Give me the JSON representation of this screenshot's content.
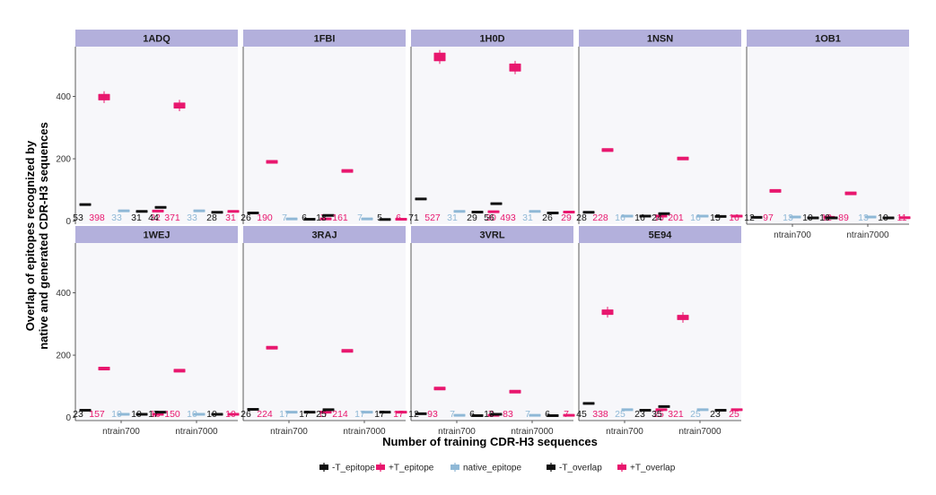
{
  "chart_data": {
    "type": "boxplot",
    "facet_layout": {
      "columns": 5,
      "rows": 2
    },
    "xlabel": "Number of training CDR-H3 sequences",
    "ylabel_lines": [
      "Overlap of epitopes recognized by",
      "native and generated CDR-H3 sequences"
    ],
    "ylim": [
      -10,
      560
    ],
    "yticks": [
      0,
      200,
      400
    ],
    "categories": [
      "ntrain700",
      "ntrain7000"
    ],
    "series_names": [
      "-T_epitope",
      "+T_epitope",
      "native_epitope",
      "-T_overlap",
      "+T_overlap"
    ],
    "series_colors": [
      "#111111",
      "#e8176e",
      "#8fb8d6",
      "#111111",
      "#e8176e"
    ],
    "legend": {
      "position": "bottom",
      "entries": [
        {
          "label": "-T_epitope",
          "color": "#111111"
        },
        {
          "label": "+T_epitope",
          "color": "#e8176e"
        },
        {
          "label": "native_epitope",
          "color": "#8fb8d6"
        },
        {
          "label": "-T_overlap",
          "color": "#111111"
        },
        {
          "label": "+T_overlap",
          "color": "#e8176e"
        }
      ]
    },
    "style": {
      "strip_fill": "#b3b0dc",
      "panel_fill": "#f7f7fa",
      "grid": false
    },
    "panels": [
      {
        "title": "1ADQ",
        "groups": [
          {
            "values": [
              53,
              398,
              33,
              31,
              32
            ],
            "labels": [
              "53",
              "398",
              "33",
              "31",
              "32"
            ]
          },
          {
            "values": [
              44,
              371,
              33,
              28,
              31
            ],
            "labels": [
              "44",
              "371",
              "33",
              "28",
              "31"
            ]
          }
        ]
      },
      {
        "title": "1FBI",
        "groups": [
          {
            "values": [
              26,
              190,
              7,
              6,
              7
            ],
            "labels": [
              "26",
              "190",
              "7",
              "6",
              "7"
            ]
          },
          {
            "values": [
              18,
              161,
              7,
              5,
              6
            ],
            "labels": [
              "18",
              "161",
              "7",
              "5",
              "6"
            ]
          }
        ]
      },
      {
        "title": "1H0D",
        "groups": [
          {
            "values": [
              71,
              527,
              31,
              29,
              30
            ],
            "labels": [
              "71",
              "527",
              "31",
              "29",
              "30"
            ]
          },
          {
            "values": [
              56,
              493,
              31,
              26,
              29
            ],
            "labels": [
              "56",
              "493",
              "31",
              "26",
              "29"
            ]
          }
        ]
      },
      {
        "title": "1NSN",
        "groups": [
          {
            "values": [
              28,
              228,
              16,
              16,
              16
            ],
            "labels": [
              "28",
              "228",
              "16",
              "16",
              "16"
            ]
          },
          {
            "values": [
              24,
              201,
              16,
              15,
              16
            ],
            "labels": [
              "24",
              "201",
              "16",
              "15",
              "16"
            ]
          }
        ]
      },
      {
        "title": "1OB1",
        "groups": [
          {
            "values": [
              12,
              97,
              13,
              10,
              12
            ],
            "labels": [
              "12",
              "97",
              "13",
              "10",
              "12"
            ]
          },
          {
            "values": [
              10,
              89,
              13,
              10,
              11
            ],
            "labels": [
              "10",
              "89",
              "13",
              "10",
              "11"
            ]
          }
        ]
      },
      {
        "title": "1WEJ",
        "groups": [
          {
            "values": [
              23,
              157,
              10,
              10,
              10
            ],
            "labels": [
              "23",
              "157",
              "10",
              "10",
              "10"
            ]
          },
          {
            "values": [
              17,
              150,
              10,
              10,
              10
            ],
            "labels": [
              "17",
              "150",
              "10",
              "10",
              "10"
            ]
          }
        ]
      },
      {
        "title": "3RAJ",
        "groups": [
          {
            "values": [
              26,
              224,
              17,
              17,
              17
            ],
            "labels": [
              "26",
              "224",
              "17",
              "17",
              "17"
            ]
          },
          {
            "values": [
              25,
              214,
              17,
              17,
              17
            ],
            "labels": [
              "25",
              "214",
              "17",
              "17",
              "17"
            ]
          }
        ]
      },
      {
        "title": "3VRL",
        "groups": [
          {
            "values": [
              12,
              93,
              7,
              6,
              7
            ],
            "labels": [
              "12",
              "93",
              "7",
              "6",
              "7"
            ]
          },
          {
            "values": [
              10,
              83,
              7,
              6,
              7
            ],
            "labels": [
              "10",
              "83",
              "7",
              "6",
              "7"
            ]
          }
        ]
      },
      {
        "title": "5E94",
        "groups": [
          {
            "values": [
              45,
              338,
              25,
              23,
              25
            ],
            "labels": [
              "45",
              "338",
              "25",
              "23",
              "25"
            ]
          },
          {
            "values": [
              35,
              321,
              25,
              23,
              25
            ],
            "labels": [
              "35",
              "321",
              "25",
              "23",
              "25"
            ]
          }
        ]
      }
    ]
  }
}
